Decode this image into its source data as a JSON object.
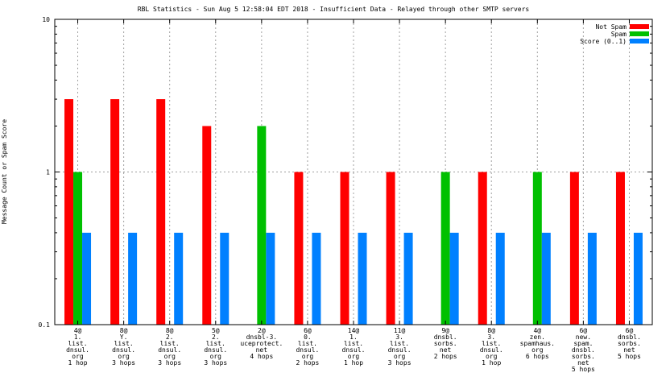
{
  "chart_data": {
    "type": "bar",
    "title": "RBL Statistics - Sun Aug  5 12:58:04 EDT 2018 - Insufficient Data - Relayed through other SMTP servers",
    "ylabel": "Message Count or Spam Score",
    "xlabel": "",
    "yscale": "log",
    "ylim": [
      0.1,
      10
    ],
    "yticks": [
      "0.1",
      "1",
      "10"
    ],
    "yticks_values": [
      0.1,
      1,
      10
    ],
    "grid": true,
    "legend_position": "top-right",
    "categories": [
      [
        "4@",
        "1.",
        "list.",
        "dnsul.",
        "org",
        "1 hop"
      ],
      [
        "8@",
        "Y.",
        "list.",
        "dnsul.",
        "org",
        "3 hops"
      ],
      [
        "8@",
        "2.",
        "list.",
        "dnsul.",
        "org",
        "3 hops"
      ],
      [
        "5@",
        "2.",
        "list.",
        "dnsul.",
        "org",
        "3 hops"
      ],
      [
        "2@",
        "dnsbl-3.",
        "uceprotect.",
        "net",
        "4 hops"
      ],
      [
        "6@",
        "0.",
        "list.",
        "dnsul.",
        "org",
        "2 hops"
      ],
      [
        "14@",
        "1.",
        "list.",
        "dnsul.",
        "org",
        "1 hop"
      ],
      [
        "11@",
        "3.",
        "list.",
        "dnsul.",
        "org",
        "3 hops"
      ],
      [
        "9@",
        "dnsbl.",
        "sorbs.",
        "net",
        "2 hops"
      ],
      [
        "8@",
        "3.",
        "list.",
        "dnsul.",
        "org",
        "1 hop"
      ],
      [
        "4@",
        "zen.",
        "spamhaus.",
        "org",
        "6 hops"
      ],
      [
        "6@",
        "new.",
        "spam.",
        "dnsbl.",
        "sorbs.",
        "net",
        "5 hops"
      ],
      [
        "6@",
        "dnsbl.",
        "sorbs.",
        "net",
        "5 hops"
      ]
    ],
    "series": [
      {
        "name": "Not Spam",
        "color": "#ff0000",
        "values": [
          3,
          3,
          3,
          2,
          0,
          1,
          1,
          1,
          0,
          1,
          0,
          1,
          1
        ]
      },
      {
        "name": "Spam",
        "color": "#00c000",
        "values": [
          1,
          0,
          0,
          0,
          2,
          0,
          0,
          0,
          1,
          0,
          1,
          0,
          0
        ]
      },
      {
        "name": "Score (0..1)",
        "color": "#0080ff",
        "values": [
          0.4,
          0.4,
          0.4,
          0.4,
          0.4,
          0.4,
          0.4,
          0.4,
          0.4,
          0.4,
          0.4,
          0.4,
          0.4
        ]
      }
    ]
  }
}
